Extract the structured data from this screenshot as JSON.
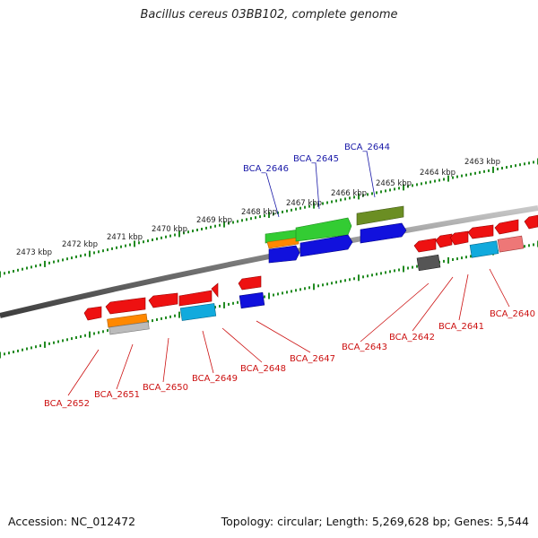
{
  "title": "Bacillus cereus 03BB102, complete genome",
  "footer": {
    "accession": "Accession: NC_012472",
    "summary": "Topology: circular; Length: 5,269,628 bp; Genes: 5,544"
  },
  "ticks": [
    "2473 kbp",
    "2472 kbp",
    "2471 kbp",
    "2470 kbp",
    "2469 kbp",
    "2468 kbp",
    "2467 kbp",
    "2466 kbp",
    "2465 kbp",
    "2464 kbp",
    "2463 kbp"
  ],
  "labels_top": [
    "BCA_2646",
    "BCA_2645",
    "BCA_2644"
  ],
  "labels_bottom": [
    "BCA_2652",
    "BCA_2651",
    "BCA_2650",
    "BCA_2649",
    "BCA_2648",
    "BCA_2647",
    "BCA_2643",
    "BCA_2642",
    "BCA_2641",
    "BCA_2640"
  ],
  "colors": {
    "red": "#ee1111",
    "blue": "#1111dd",
    "green": "#33cc33",
    "olive": "#6b8e23",
    "orange": "#ff8800",
    "cyan": "#11aadd",
    "pink": "#ee7777",
    "gray": "#555555",
    "tick_green": "#228b22"
  }
}
